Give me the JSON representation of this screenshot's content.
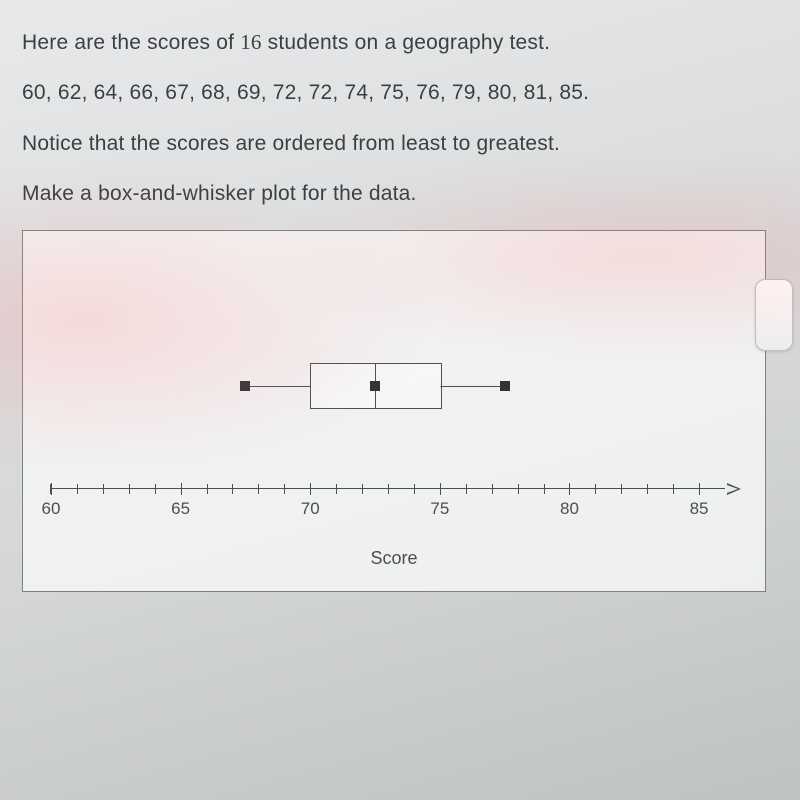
{
  "question": {
    "line1_a": "Here are the scores of ",
    "n_students": "16",
    "line1_b": " students on a geography test.",
    "data_line": "60, 62, 64, 66, 67, 68, 69, 72, 72, 74, 75, 76, 79, 80, 81, 85.",
    "line3": "Notice that the scores are ordered from least to greatest.",
    "line4": "Make a box-and-whisker plot for the data."
  },
  "chart": {
    "type": "boxplot",
    "axis_title": "Score",
    "xlim": [
      60,
      86
    ],
    "major_ticks": [
      60,
      65,
      70,
      75,
      80,
      85
    ],
    "minor_step": 1,
    "boxplot": {
      "min": 67.5,
      "q1": 70,
      "median": 72.5,
      "q3": 75,
      "max": 77.5
    },
    "colors": {
      "axis": "#4d5052",
      "box_border": "#4d5052",
      "endpoint_fill": "#2f3335",
      "frame_border": "#7c8082",
      "text": "#3b3f42",
      "background": "#e8e9ea"
    },
    "font_sizes": {
      "question": 21,
      "tick_label": 17,
      "axis_title": 18
    }
  }
}
